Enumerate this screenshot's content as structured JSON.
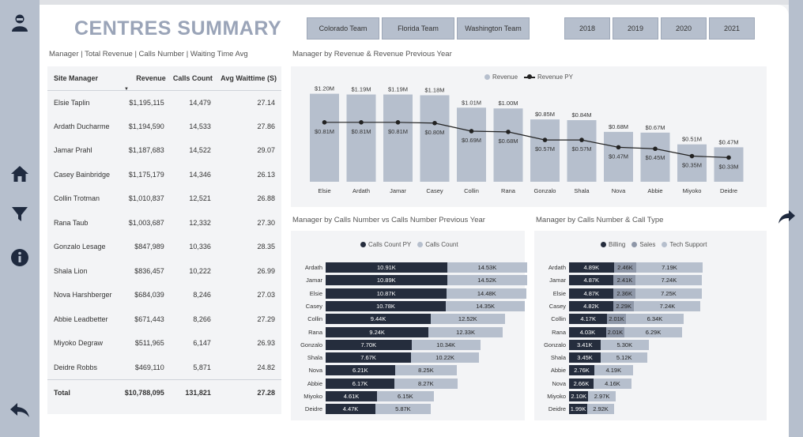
{
  "page": {
    "title": "CENTRES SUMMARY",
    "table_subtitle": "Manager | Total Revenue | Calls Number | Waiting Time Avg",
    "revenue_chart_title": "Manager by Revenue & Revenue Previous Year",
    "calls_chart_title": "Manager by Calls Number vs Calls Number Previous Year",
    "calltype_chart_title": "Manager by Calls Number & Call Type"
  },
  "slicers": {
    "teams": [
      "Colorado Team",
      "Florida Team",
      "Washington Team"
    ],
    "years": [
      "2018",
      "2019",
      "2020",
      "2021"
    ]
  },
  "sidebar": {
    "icons": [
      "person-icon",
      "home-icon",
      "filter-icon",
      "info-icon",
      "back-icon"
    ]
  },
  "table": {
    "headers": [
      "Site Manager",
      "Revenue",
      "Calls Count",
      "Avg Waittime (S)"
    ],
    "rows": [
      [
        "Elsie Taplin",
        "$1,195,115",
        "14,479",
        "27.14"
      ],
      [
        "Ardath Ducharme",
        "$1,194,590",
        "14,533",
        "27.86"
      ],
      [
        "Jamar Prahl",
        "$1,187,683",
        "14,522",
        "29.07"
      ],
      [
        "Casey Bainbridge",
        "$1,175,179",
        "14,346",
        "26.13"
      ],
      [
        "Collin Trotman",
        "$1,010,837",
        "12,521",
        "26.88"
      ],
      [
        "Rana Taub",
        "$1,003,687",
        "12,332",
        "27.30"
      ],
      [
        "Gonzalo Lesage",
        "$847,989",
        "10,336",
        "28.35"
      ],
      [
        "Shala Lion",
        "$836,457",
        "10,222",
        "26.99"
      ],
      [
        "Nova Harshberger",
        "$684,039",
        "8,246",
        "27.03"
      ],
      [
        "Abbie Leadbetter",
        "$671,443",
        "8,266",
        "27.29"
      ],
      [
        "Miyoko Degraw",
        "$511,965",
        "6,147",
        "26.93"
      ],
      [
        "Deidre Robbs",
        "$469,110",
        "5,871",
        "24.82"
      ]
    ],
    "total": [
      "Total",
      "$10,788,095",
      "131,821",
      "27.28"
    ]
  },
  "chart_data": [
    {
      "type": "bar",
      "legend": [
        "Revenue",
        "Revenue PY"
      ],
      "categories": [
        "Elsie",
        "Ardath",
        "Jamar",
        "Casey",
        "Collin",
        "Rana",
        "Gonzalo",
        "Shala",
        "Nova",
        "Abbie",
        "Miyoko",
        "Deidre"
      ],
      "series": [
        {
          "name": "Revenue",
          "values": [
            1.2,
            1.19,
            1.19,
            1.18,
            1.01,
            1.0,
            0.85,
            0.84,
            0.68,
            0.67,
            0.51,
            0.47
          ],
          "labels": [
            "$1.20M",
            "$1.19M",
            "$1.19M",
            "$1.18M",
            "$1.01M",
            "$1.00M",
            "$0.85M",
            "$0.84M",
            "$0.68M",
            "$0.67M",
            "$0.51M",
            "$0.47M"
          ]
        },
        {
          "name": "Revenue PY",
          "values": [
            0.81,
            0.81,
            0.81,
            0.8,
            0.69,
            0.68,
            0.57,
            0.57,
            0.47,
            0.45,
            0.35,
            0.33
          ],
          "labels": [
            "$0.81M",
            "$0.81M",
            "$0.81M",
            "$0.80M",
            "$0.69M",
            "$0.68M",
            "$0.57M",
            "$0.57M",
            "$0.47M",
            "$0.45M",
            "$0.35M",
            "$0.33M"
          ]
        }
      ],
      "ylim": [
        0,
        1.25
      ],
      "colors": {
        "bar": "#b6bfcd",
        "line": "#222222"
      }
    },
    {
      "type": "bar",
      "orientation": "horizontal",
      "legend": [
        "Calls Count PY",
        "Calls Count"
      ],
      "categories": [
        "Ardath",
        "Jamar",
        "Elsie",
        "Casey",
        "Collin",
        "Rana",
        "Gonzalo",
        "Shala",
        "Nova",
        "Abbie",
        "Miyoko",
        "Deidre"
      ],
      "series": [
        {
          "name": "Calls Count PY",
          "values": [
            10.91,
            10.89,
            10.87,
            10.78,
            9.44,
            9.24,
            7.7,
            7.67,
            6.21,
            6.17,
            4.61,
            4.47
          ],
          "labels": [
            "10.91K",
            "10.89K",
            "10.87K",
            "10.78K",
            "9.44K",
            "9.24K",
            "7.70K",
            "7.67K",
            "6.21K",
            "6.17K",
            "4.61K",
            "4.47K"
          ]
        },
        {
          "name": "Calls Count",
          "values": [
            14.53,
            14.52,
            14.48,
            14.35,
            12.52,
            12.33,
            10.34,
            10.22,
            8.25,
            8.27,
            6.15,
            5.87
          ],
          "labels": [
            "14.53K",
            "14.52K",
            "14.48K",
            "14.35K",
            "12.52K",
            "12.33K",
            "10.34K",
            "10.22K",
            "8.25K",
            "8.27K",
            "6.15K",
            "5.87K"
          ]
        }
      ],
      "colors": {
        "py": "#252d3d",
        "current": "#b6bfcd"
      }
    },
    {
      "type": "bar",
      "orientation": "horizontal",
      "stacked": true,
      "legend": [
        "Billing",
        "Sales",
        "Tech Support"
      ],
      "categories": [
        "Ardath",
        "Jamar",
        "Elsie",
        "Casey",
        "Collin",
        "Rana",
        "Gonzalo",
        "Shala",
        "Abbie",
        "Nova",
        "Miyoko",
        "Deidre"
      ],
      "series": [
        {
          "name": "Billing",
          "values": [
            4.89,
            4.87,
            4.87,
            4.82,
            4.17,
            4.03,
            3.41,
            3.45,
            2.76,
            2.66,
            2.1,
            1.99
          ],
          "labels": [
            "4.89K",
            "4.87K",
            "4.87K",
            "4.82K",
            "4.17K",
            "4.03K",
            "3.41K",
            "3.45K",
            "2.76K",
            "2.66K",
            "2.10K",
            "1.99K"
          ]
        },
        {
          "name": "Sales",
          "values": [
            2.46,
            2.41,
            2.36,
            2.29,
            2.01,
            2.01,
            null,
            null,
            null,
            null,
            null,
            null
          ],
          "labels": [
            "2.46K",
            "2.41K",
            "2.36K",
            "2.29K",
            "2.01K",
            "2.01K",
            "",
            "",
            "",
            "",
            "",
            ""
          ]
        },
        {
          "name": "Tech Support",
          "values": [
            7.19,
            7.24,
            7.25,
            7.24,
            6.34,
            6.29,
            5.3,
            5.12,
            4.19,
            4.16,
            2.97,
            2.92
          ],
          "labels": [
            "7.19K",
            "7.24K",
            "7.25K",
            "7.24K",
            "6.34K",
            "6.29K",
            "5.30K",
            "5.12K",
            "4.19K",
            "4.16K",
            "2.97K",
            "2.92K"
          ]
        }
      ],
      "colors": {
        "billing": "#252d3d",
        "sales": "#8e97a8",
        "tech": "#b6bfcd"
      }
    }
  ]
}
